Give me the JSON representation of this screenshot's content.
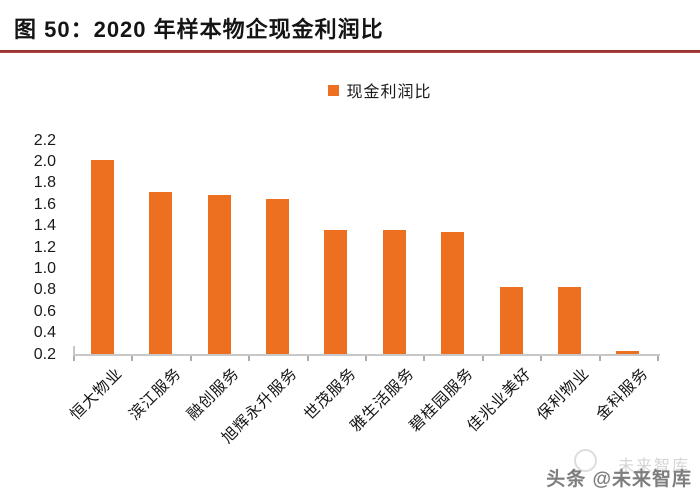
{
  "header": {
    "title": "图 50：2020 年样本物企现金利润比"
  },
  "legend": {
    "label": "现金利润比"
  },
  "colors": {
    "accent_red": "#A53A3B",
    "bar_orange": "#ED7020",
    "axis_line_gray": "#C8C8C8",
    "tick_gray": "#ADADAD",
    "text_dark": "#1A1A1A"
  },
  "chart_data": {
    "type": "bar",
    "title": "2020 年样本物企现金利润比",
    "categories": [
      "恒大物业",
      "滨江服务",
      "融创服务",
      "旭辉永升服务",
      "世茂服务",
      "雅生活服务",
      "碧桂园服务",
      "佳兆业美好",
      "保利物业",
      "金科服务"
    ],
    "series": [
      {
        "name": "现金利润比",
        "values": [
          2.01,
          1.71,
          1.69,
          1.65,
          1.36,
          1.36,
          1.34,
          0.83,
          0.83,
          0.23
        ]
      }
    ],
    "xlabel": "",
    "ylabel": "",
    "ylim": [
      0.2,
      2.2
    ],
    "ytick_step": 0.2,
    "ytick_labels": [
      "2.2",
      "2.0",
      "1.8",
      "1.6",
      "1.4",
      "1.2",
      "1.0",
      "0.8",
      "0.6",
      "0.4",
      "0.2"
    ],
    "grid": false,
    "legend_position": "top-center",
    "xtick_label_rotation_deg": -45
  },
  "watermark": {
    "ghost_text": "未来智库",
    "main_text": "头条 @未来智库"
  }
}
